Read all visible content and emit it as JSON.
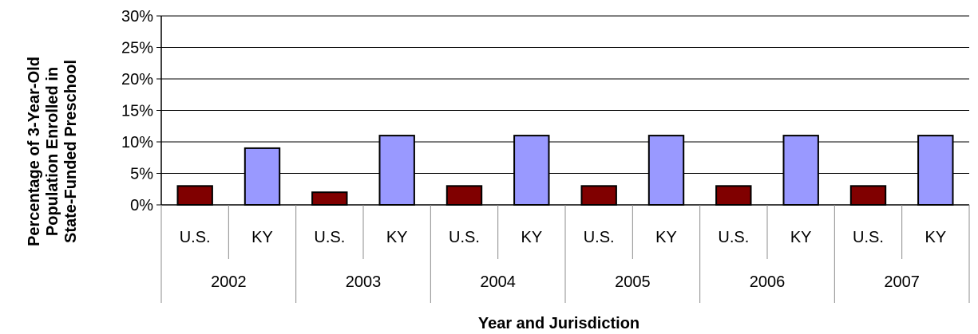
{
  "chart_data": {
    "type": "bar",
    "title": "",
    "xlabel": "Year and Jurisdiction",
    "ylabel_lines": [
      "Percentage of 3-Year-Old",
      "Population Enrolled in",
      "State-Funded Preschool"
    ],
    "ylim": [
      0,
      30
    ],
    "yticks": [
      "0%",
      "5%",
      "10%",
      "15%",
      "20%",
      "25%",
      "30%"
    ],
    "grid": true,
    "legend": "none",
    "groups": [
      "2002",
      "2003",
      "2004",
      "2005",
      "2006",
      "2007"
    ],
    "categories": [
      "U.S.",
      "KY"
    ],
    "colors": {
      "U.S.": "#800000",
      "KY": "#9999ff"
    },
    "values": [
      {
        "year": "2002",
        "U.S.": 3,
        "KY": 9
      },
      {
        "year": "2003",
        "U.S.": 2,
        "KY": 11
      },
      {
        "year": "2004",
        "U.S.": 3,
        "KY": 11
      },
      {
        "year": "2005",
        "U.S.": 3,
        "KY": 11
      },
      {
        "year": "2006",
        "U.S.": 3,
        "KY": 11
      },
      {
        "year": "2007",
        "U.S.": 3,
        "KY": 11
      }
    ]
  }
}
